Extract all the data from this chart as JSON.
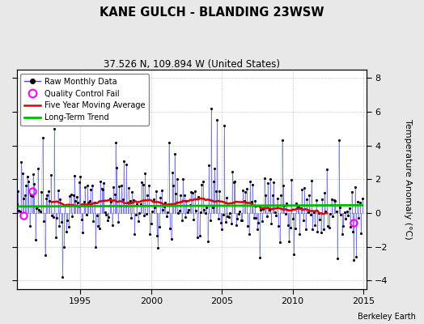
{
  "title": "KANE GULCH - BLANDING 23WSW",
  "subtitle": "37.526 N, 109.894 W (United States)",
  "ylabel": "Temperature Anomaly (°C)",
  "credit": "Berkeley Earth",
  "xlim": [
    1990.5,
    2015.2
  ],
  "ylim": [
    -4.5,
    8.5
  ],
  "yticks": [
    -4,
    -2,
    0,
    2,
    4,
    6,
    8
  ],
  "xticks": [
    1995,
    2000,
    2005,
    2010,
    2015
  ],
  "raw_color": "#4444dd",
  "raw_alpha": 0.65,
  "ma_color": "#dd0000",
  "trend_color": "#00bb00",
  "qc_color": "#ff00ff",
  "bg_color": "#e8e8e8",
  "plot_bg": "#ffffff",
  "seed": 12345,
  "figw": 5.24,
  "figh": 4.0,
  "dpi": 100
}
